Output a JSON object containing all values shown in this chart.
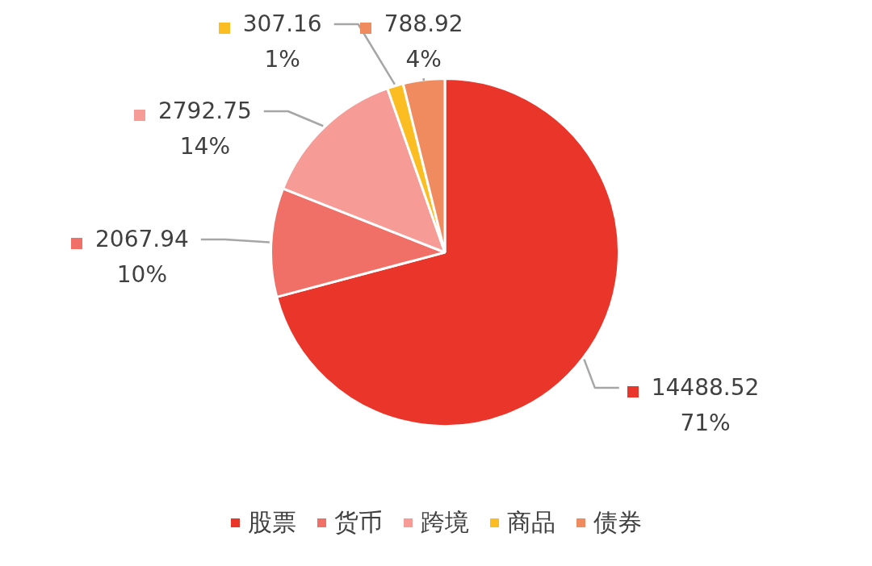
{
  "chart_data": {
    "type": "pie",
    "categories": [
      "股票",
      "货币",
      "跨境",
      "商品",
      "债券"
    ],
    "values": [
      14488.52,
      2067.94,
      2792.75,
      307.16,
      788.92
    ],
    "colors": [
      "#ea352b",
      "#f07068",
      "#f79b96",
      "#fbbd22",
      "#ef8b5e"
    ],
    "value_labels": [
      "14488.52\n71%",
      "2067.94\n10%",
      "2792.75\n14%",
      "307.16\n1%",
      "788.92\n4%"
    ],
    "legend": "bottom"
  }
}
